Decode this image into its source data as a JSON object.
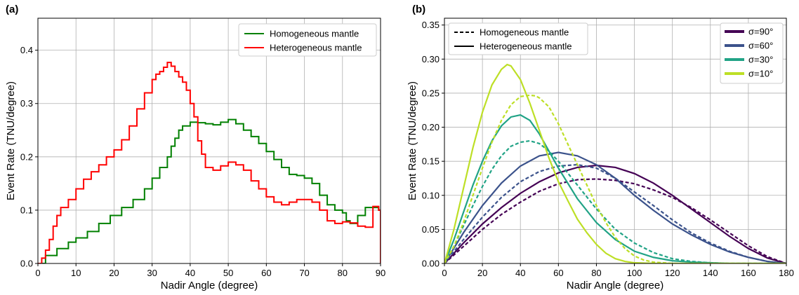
{
  "chart_data": [
    {
      "type": "line",
      "panel_label": "(a)",
      "xlabel": "Nadir Angle (degree)",
      "ylabel": "Event Rate (TNU/degree)",
      "xlim": [
        0,
        90
      ],
      "ylim": [
        0,
        0.46
      ],
      "xticks": [
        0,
        10,
        20,
        30,
        40,
        50,
        60,
        70,
        80,
        90
      ],
      "yticks": [
        0.0,
        0.1,
        0.2,
        0.3,
        0.4
      ],
      "grid": true,
      "legend_position": "top-right",
      "steps": true,
      "series": [
        {
          "name": "Homogeneous mantle",
          "color": "#008000",
          "style": "solid",
          "x": [
            0,
            2,
            5,
            8,
            10,
            13,
            16,
            19,
            22,
            25,
            28,
            30,
            32,
            34,
            35,
            36,
            37,
            38,
            40,
            42,
            44,
            46,
            48,
            50,
            52,
            54,
            56,
            58,
            60,
            62,
            64,
            66,
            68,
            70,
            72,
            74,
            76,
            78,
            80,
            81,
            82,
            84,
            86,
            88,
            89.5
          ],
          "y": [
            0.0,
            0.015,
            0.028,
            0.04,
            0.048,
            0.06,
            0.075,
            0.09,
            0.105,
            0.12,
            0.14,
            0.16,
            0.18,
            0.2,
            0.22,
            0.235,
            0.25,
            0.258,
            0.265,
            0.264,
            0.262,
            0.26,
            0.265,
            0.27,
            0.262,
            0.25,
            0.238,
            0.225,
            0.21,
            0.195,
            0.18,
            0.167,
            0.165,
            0.16,
            0.15,
            0.128,
            0.11,
            0.1,
            0.095,
            0.08,
            0.075,
            0.09,
            0.105,
            0.105,
            0.1
          ]
        },
        {
          "name": "Heterogeneous mantle",
          "color": "#ff0000",
          "style": "solid",
          "x": [
            0,
            1,
            2,
            3,
            4,
            5,
            6,
            8,
            10,
            12,
            14,
            16,
            18,
            20,
            22,
            24,
            26,
            28,
            30,
            31,
            32,
            33,
            34,
            35,
            36,
            37,
            38,
            39,
            40,
            41,
            42,
            43,
            44,
            46,
            48,
            50,
            52,
            54,
            56,
            58,
            60,
            62,
            64,
            66,
            68,
            70,
            72,
            74,
            76,
            78,
            80,
            82,
            84,
            86,
            88,
            89.5
          ],
          "y": [
            0.0,
            0.01,
            0.025,
            0.045,
            0.07,
            0.09,
            0.105,
            0.12,
            0.14,
            0.158,
            0.172,
            0.185,
            0.2,
            0.213,
            0.232,
            0.258,
            0.29,
            0.32,
            0.345,
            0.355,
            0.36,
            0.368,
            0.377,
            0.37,
            0.36,
            0.35,
            0.34,
            0.325,
            0.3,
            0.275,
            0.23,
            0.205,
            0.18,
            0.175,
            0.183,
            0.19,
            0.185,
            0.175,
            0.155,
            0.14,
            0.125,
            0.115,
            0.11,
            0.115,
            0.12,
            0.12,
            0.115,
            0.1,
            0.08,
            0.075,
            0.078,
            0.076,
            0.07,
            0.068,
            0.107,
            0.1
          ]
        }
      ]
    },
    {
      "type": "line",
      "panel_label": "(b)",
      "xlabel": "Nadir Angle (degree)",
      "ylabel": "Event Rate (TNU/degree)",
      "xlim": [
        0,
        180
      ],
      "ylim": [
        0,
        0.36
      ],
      "xticks": [
        0,
        20,
        40,
        60,
        80,
        100,
        120,
        140,
        160,
        180
      ],
      "yticks": [
        0.0,
        0.05,
        0.1,
        0.15,
        0.2,
        0.25,
        0.3,
        0.35
      ],
      "grid": true,
      "legend_style": {
        "position": "top-left",
        "entries": [
          {
            "label": "Homogeneous mantle",
            "style": "dashed"
          },
          {
            "label": "Heterogeneous mantle",
            "style": "solid"
          }
        ]
      },
      "legend_sigma": {
        "position": "top-right",
        "entries": [
          {
            "label": "σ=90°",
            "color": "#440154"
          },
          {
            "label": "σ=60°",
            "color": "#3b528b"
          },
          {
            "label": "σ=30°",
            "color": "#21a386"
          },
          {
            "label": "σ=10°",
            "color": "#bddf26"
          }
        ]
      },
      "series": [
        {
          "sigma": "σ=90°",
          "color": "#440154",
          "style": "solid",
          "x": [
            0,
            10,
            20,
            30,
            40,
            50,
            60,
            70,
            80,
            90,
            100,
            110,
            120,
            130,
            140,
            150,
            160,
            170,
            180
          ],
          "y": [
            0.0,
            0.03,
            0.058,
            0.082,
            0.103,
            0.12,
            0.133,
            0.141,
            0.144,
            0.141,
            0.132,
            0.118,
            0.1,
            0.08,
            0.06,
            0.04,
            0.022,
            0.008,
            0.0
          ]
        },
        {
          "sigma": "σ=90°",
          "color": "#440154",
          "style": "dashed",
          "x": [
            0,
            10,
            20,
            30,
            40,
            50,
            60,
            70,
            80,
            90,
            100,
            110,
            120,
            130,
            140,
            150,
            160,
            170,
            180
          ],
          "y": [
            0.0,
            0.025,
            0.05,
            0.072,
            0.09,
            0.106,
            0.117,
            0.123,
            0.124,
            0.122,
            0.117,
            0.108,
            0.097,
            0.082,
            0.064,
            0.045,
            0.026,
            0.01,
            0.0
          ]
        },
        {
          "sigma": "σ=60°",
          "color": "#3b528b",
          "style": "solid",
          "x": [
            0,
            10,
            20,
            30,
            40,
            50,
            60,
            70,
            80,
            90,
            100,
            110,
            120,
            130,
            140,
            150,
            160,
            170,
            180
          ],
          "y": [
            0.0,
            0.045,
            0.085,
            0.118,
            0.143,
            0.158,
            0.163,
            0.158,
            0.145,
            0.125,
            0.1,
            0.078,
            0.058,
            0.042,
            0.028,
            0.017,
            0.009,
            0.003,
            0.0
          ]
        },
        {
          "sigma": "σ=60°",
          "color": "#3b528b",
          "style": "dashed",
          "x": [
            0,
            10,
            20,
            30,
            40,
            50,
            60,
            70,
            80,
            90,
            100,
            110,
            120,
            130,
            140,
            150,
            160,
            170,
            180
          ],
          "y": [
            0.0,
            0.035,
            0.068,
            0.097,
            0.12,
            0.135,
            0.143,
            0.145,
            0.14,
            0.125,
            0.105,
            0.085,
            0.064,
            0.045,
            0.03,
            0.018,
            0.009,
            0.003,
            0.0
          ]
        },
        {
          "sigma": "σ=30°",
          "color": "#21a386",
          "style": "solid",
          "x": [
            0,
            5,
            10,
            15,
            20,
            25,
            30,
            35,
            40,
            45,
            50,
            55,
            60,
            70,
            80,
            90,
            100,
            110,
            120,
            130,
            140,
            150,
            160,
            170,
            180
          ],
          "y": [
            0.0,
            0.035,
            0.075,
            0.115,
            0.15,
            0.18,
            0.202,
            0.215,
            0.218,
            0.21,
            0.19,
            0.165,
            0.14,
            0.095,
            0.06,
            0.035,
            0.018,
            0.009,
            0.004,
            0.002,
            0.001,
            0.0,
            0.0,
            0.0,
            0.0
          ]
        },
        {
          "sigma": "σ=30°",
          "color": "#21a386",
          "style": "dashed",
          "x": [
            0,
            5,
            10,
            15,
            20,
            25,
            30,
            35,
            40,
            45,
            50,
            55,
            60,
            70,
            80,
            90,
            100,
            110,
            120,
            130,
            140,
            150,
            160,
            170,
            180
          ],
          "y": [
            0.0,
            0.025,
            0.055,
            0.085,
            0.113,
            0.138,
            0.158,
            0.172,
            0.178,
            0.18,
            0.176,
            0.165,
            0.15,
            0.115,
            0.08,
            0.05,
            0.03,
            0.016,
            0.007,
            0.003,
            0.001,
            0.0,
            0.0,
            0.0,
            0.0
          ]
        },
        {
          "sigma": "σ=10°",
          "color": "#bddf26",
          "style": "solid",
          "x": [
            0,
            5,
            10,
            15,
            20,
            25,
            30,
            33,
            35,
            40,
            45,
            50,
            55,
            60,
            65,
            70,
            75,
            80,
            85,
            90,
            95,
            100,
            110,
            120,
            180
          ],
          "y": [
            0.0,
            0.05,
            0.11,
            0.17,
            0.222,
            0.262,
            0.285,
            0.292,
            0.29,
            0.27,
            0.235,
            0.195,
            0.155,
            0.12,
            0.092,
            0.065,
            0.045,
            0.028,
            0.015,
            0.007,
            0.003,
            0.001,
            0.0,
            0.0,
            0.0
          ]
        },
        {
          "sigma": "σ=10°",
          "color": "#bddf26",
          "style": "dashed",
          "x": [
            0,
            5,
            10,
            15,
            20,
            25,
            30,
            35,
            40,
            45,
            48,
            50,
            55,
            60,
            65,
            70,
            75,
            80,
            85,
            90,
            95,
            100,
            105,
            110,
            120,
            180
          ],
          "y": [
            0.0,
            0.025,
            0.06,
            0.1,
            0.14,
            0.178,
            0.21,
            0.233,
            0.245,
            0.247,
            0.246,
            0.243,
            0.23,
            0.205,
            0.175,
            0.145,
            0.115,
            0.085,
            0.06,
            0.038,
            0.022,
            0.011,
            0.005,
            0.002,
            0.0,
            0.0
          ]
        }
      ]
    }
  ]
}
